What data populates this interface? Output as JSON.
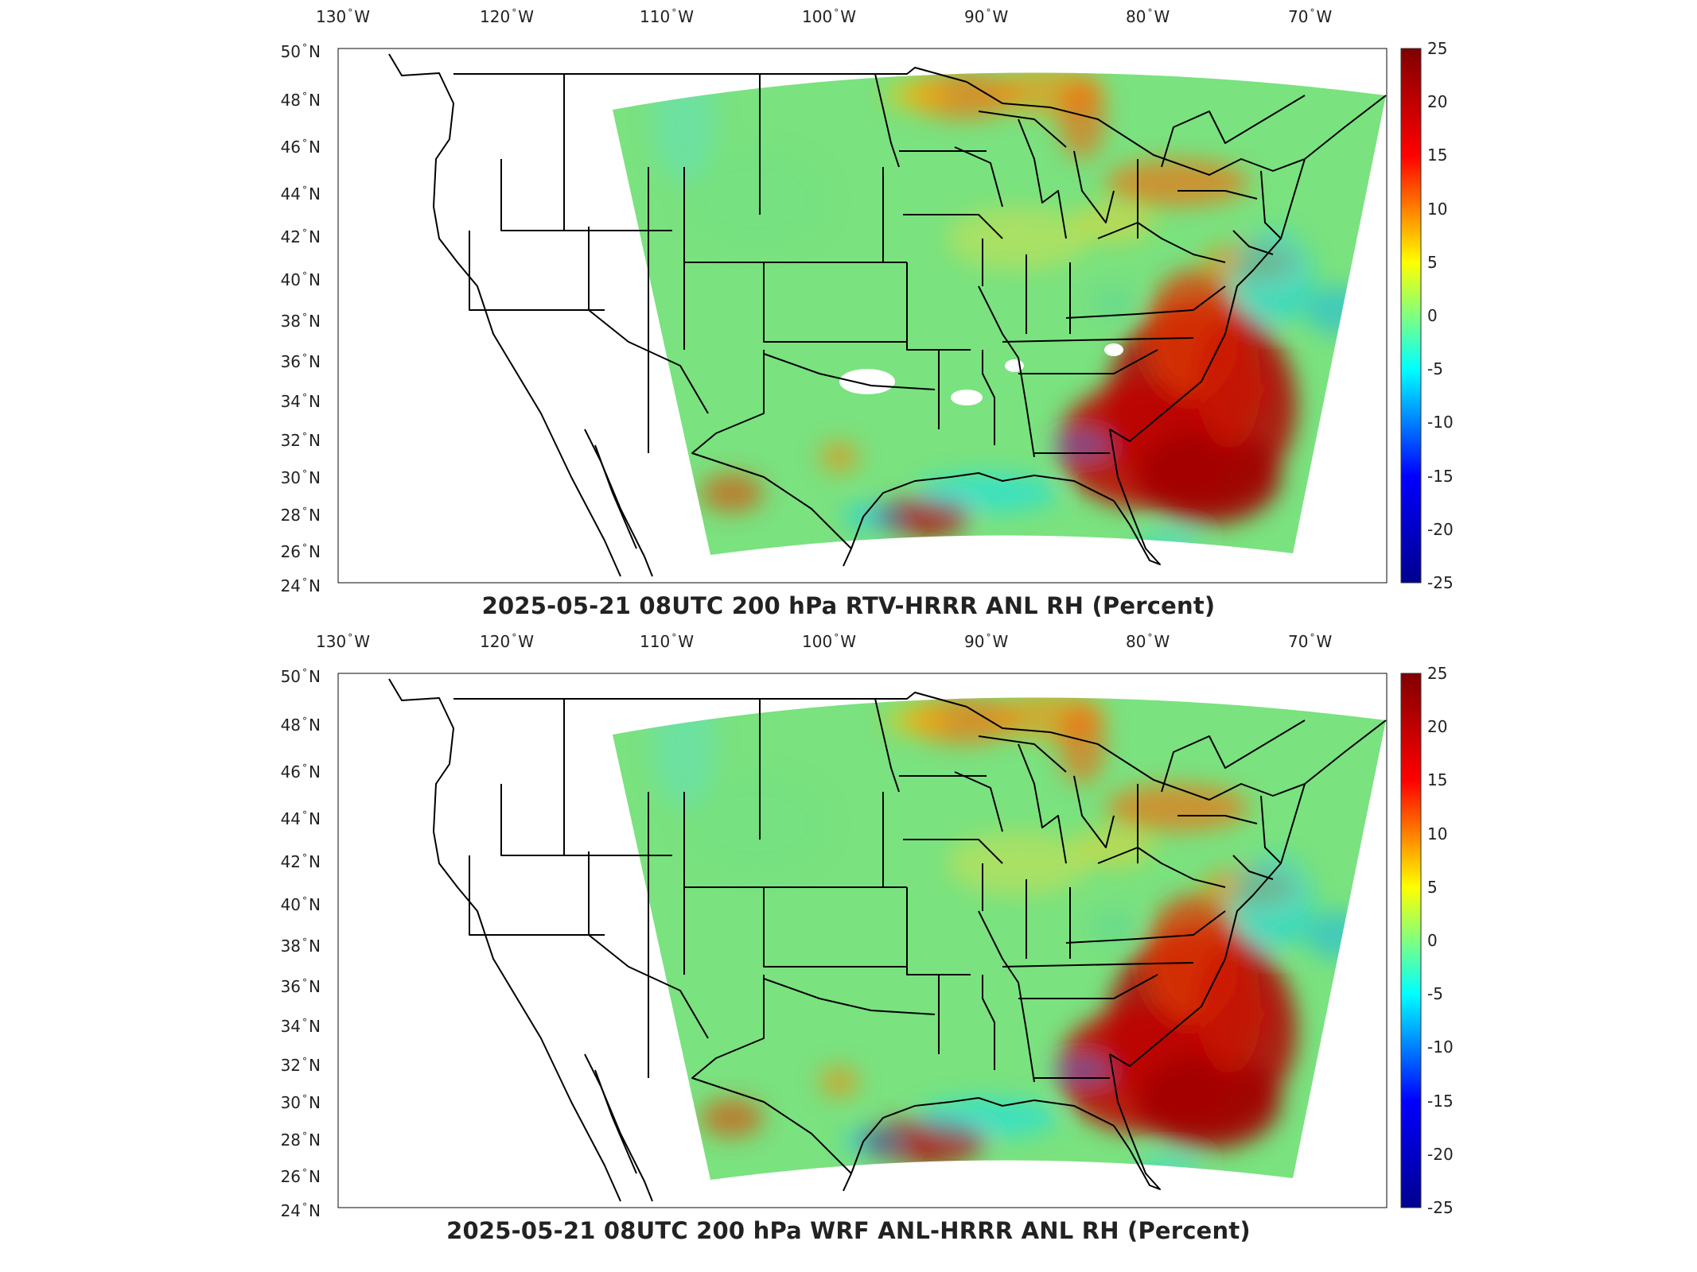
{
  "panels": [
    {
      "title": "2025-05-21 08UTC 200 hPa RTV-HRRR ANL RH (Percent)"
    },
    {
      "title": "2025-05-21 08UTC 200 hPa WRF ANL-HRRR ANL RH (Percent)"
    }
  ],
  "lon_labels": [
    {
      "deg": "130",
      "hemi": "W"
    },
    {
      "deg": "120",
      "hemi": "W"
    },
    {
      "deg": "110",
      "hemi": "W"
    },
    {
      "deg": "100",
      "hemi": "W"
    },
    {
      "deg": "90",
      "hemi": "W"
    },
    {
      "deg": "80",
      "hemi": "W"
    },
    {
      "deg": "70",
      "hemi": "W"
    }
  ],
  "lat_labels": [
    {
      "deg": "50",
      "hemi": "N"
    },
    {
      "deg": "48",
      "hemi": "N"
    },
    {
      "deg": "46",
      "hemi": "N"
    },
    {
      "deg": "44",
      "hemi": "N"
    },
    {
      "deg": "42",
      "hemi": "N"
    },
    {
      "deg": "40",
      "hemi": "N"
    },
    {
      "deg": "38",
      "hemi": "N"
    },
    {
      "deg": "36",
      "hemi": "N"
    },
    {
      "deg": "34",
      "hemi": "N"
    },
    {
      "deg": "32",
      "hemi": "N"
    },
    {
      "deg": "30",
      "hemi": "N"
    },
    {
      "deg": "28",
      "hemi": "N"
    },
    {
      "deg": "26",
      "hemi": "N"
    },
    {
      "deg": "24",
      "hemi": "N"
    }
  ],
  "colorbar": {
    "ticks": [
      "25",
      "20",
      "15",
      "10",
      "5",
      "0",
      "-5",
      "-10",
      "-15",
      "-20",
      "-25"
    ],
    "colors": [
      "#800000",
      "#ff0000",
      "#ffff00",
      "#00ffff",
      "#0000ff",
      "#00008f"
    ]
  }
}
